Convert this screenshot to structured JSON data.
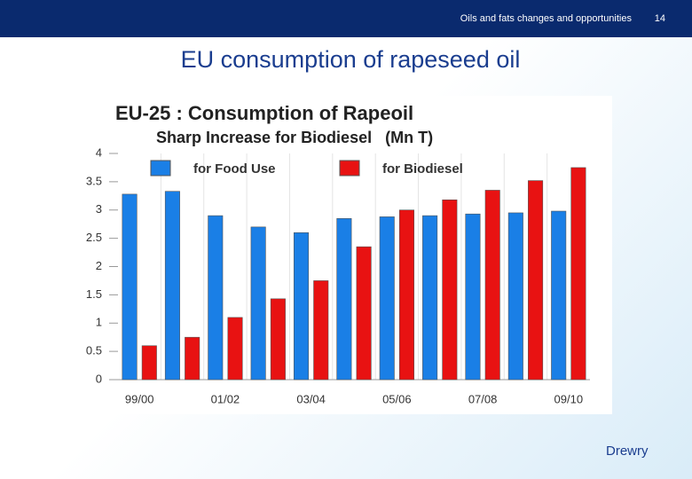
{
  "header": {
    "title": "Oils and fats changes and opportunities",
    "page": "14"
  },
  "slide_title": "EU consumption of rapeseed oil",
  "logo": "Drewry",
  "chart_data": {
    "type": "bar",
    "title": "EU-25 : Consumption of Rapeoil",
    "subtitle": "Sharp Increase for Biodiesel   (Mn T)",
    "categories": [
      "99/00",
      null,
      "01/02",
      null,
      "03/04",
      null,
      "05/06",
      null,
      "07/08",
      null,
      "09/10"
    ],
    "series": [
      {
        "name": "for Food Use",
        "color": "#1a7fe6",
        "values": [
          3.28,
          3.33,
          2.9,
          2.7,
          2.6,
          2.85,
          2.88,
          2.9,
          2.93,
          2.95,
          2.98
        ]
      },
      {
        "name": "for Biodiesel",
        "color": "#e81212",
        "values": [
          0.6,
          0.75,
          1.1,
          1.43,
          1.75,
          2.35,
          3.0,
          3.18,
          3.35,
          3.52,
          3.75
        ]
      }
    ],
    "ylim": [
      0,
      4
    ],
    "yticks": [
      0,
      0.5,
      1,
      1.5,
      2,
      2.5,
      3,
      3.5,
      4
    ],
    "grid": true
  }
}
